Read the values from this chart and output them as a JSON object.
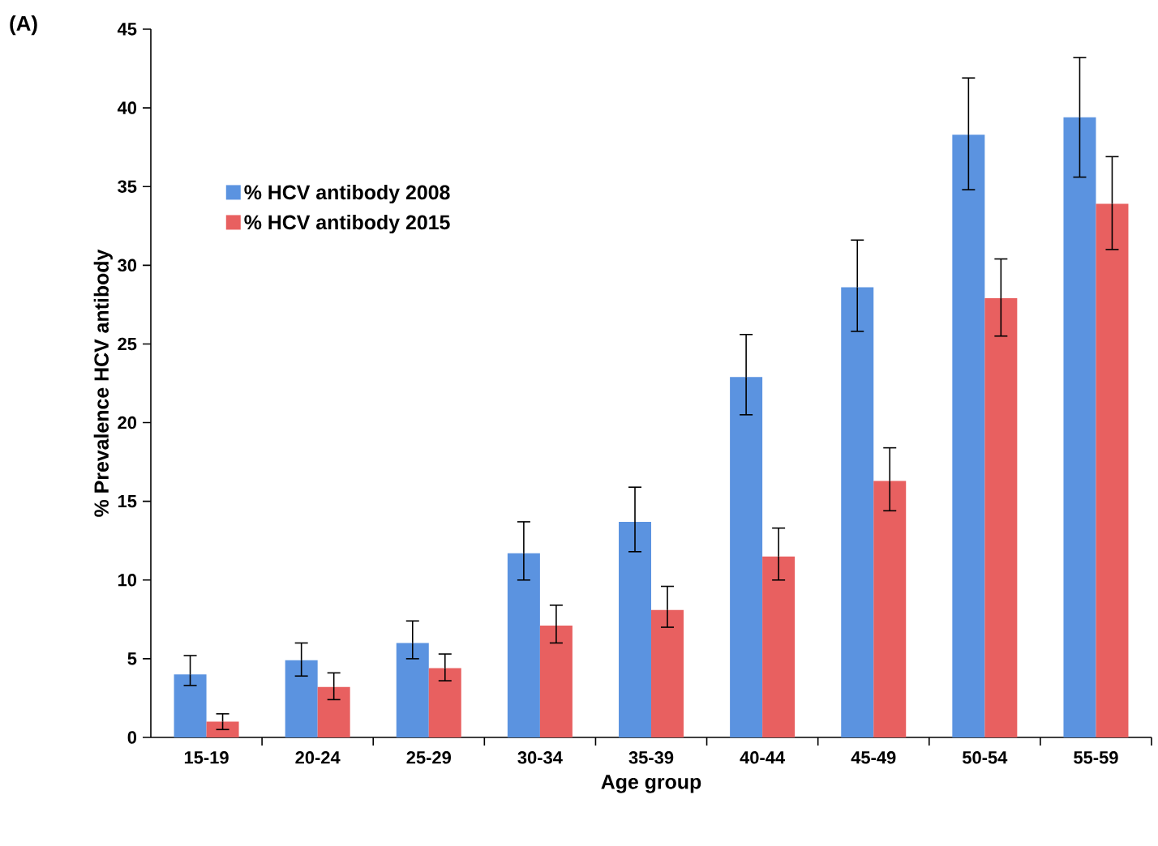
{
  "chart_data": {
    "type": "bar",
    "xlabel": "Age group",
    "ylabel": "% Prevalence HCV antibody",
    "annotations": [
      "(A)"
    ],
    "categories": [
      "15-19",
      "20-24",
      "25-29",
      "30-34",
      "35-39",
      "40-44",
      "45-49",
      "50-54",
      "55-59"
    ],
    "series": [
      {
        "name": "% HCV antibody 2008",
        "color": "#5b93e0",
        "values": [
          4.0,
          4.9,
          6.0,
          11.7,
          13.7,
          22.9,
          28.6,
          38.3,
          39.4
        ],
        "errors": [
          [
            3.3,
            5.2
          ],
          [
            3.9,
            6.0
          ],
          [
            5.0,
            7.4
          ],
          [
            10.0,
            13.7
          ],
          [
            11.8,
            15.9
          ],
          [
            20.5,
            25.6
          ],
          [
            25.8,
            31.6
          ],
          [
            34.8,
            41.9
          ],
          [
            35.6,
            43.2
          ]
        ]
      },
      {
        "name": "% HCV antibody 2015",
        "color": "#e86060",
        "values": [
          1.0,
          3.2,
          4.4,
          7.1,
          8.1,
          11.5,
          16.3,
          27.9,
          33.9
        ],
        "errors": [
          [
            0.5,
            1.5
          ],
          [
            2.4,
            4.1
          ],
          [
            3.6,
            5.3
          ],
          [
            6.0,
            8.4
          ],
          [
            7.0,
            9.6
          ],
          [
            10.0,
            13.3
          ],
          [
            14.4,
            18.4
          ],
          [
            25.5,
            30.4
          ],
          [
            31.0,
            36.9
          ]
        ]
      }
    ],
    "ylim": [
      0,
      45
    ],
    "yticks": [
      0,
      5,
      10,
      15,
      20,
      25,
      30,
      35,
      40,
      45
    ],
    "legend": "top left"
  }
}
